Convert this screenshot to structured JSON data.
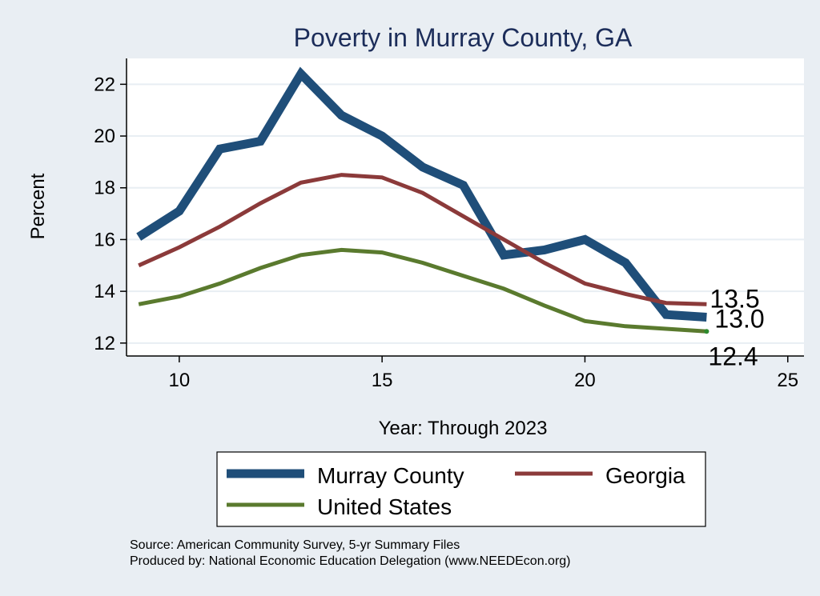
{
  "chart_data": {
    "type": "line",
    "title": "Poverty in Murray County, GA",
    "xlabel": "Year: Through 2023",
    "ylabel": "Percent",
    "xlim": [
      8.7,
      25.4
    ],
    "ylim": [
      11.5,
      23.0
    ],
    "xticks": [
      10,
      15,
      20,
      25
    ],
    "yticks": [
      12,
      14,
      16,
      18,
      20,
      22
    ],
    "grid": true,
    "legend_position": "bottom",
    "series": [
      {
        "name": "Murray County",
        "color": "#1f4e79",
        "x": [
          9,
          10,
          11,
          12,
          13,
          14,
          15,
          16,
          17,
          18,
          19,
          20,
          21,
          22,
          23
        ],
        "y": [
          16.1,
          17.1,
          19.5,
          19.8,
          22.4,
          20.8,
          20.0,
          18.8,
          18.1,
          15.4,
          15.6,
          16.0,
          15.1,
          13.1,
          13.0
        ],
        "end_label": "13.0"
      },
      {
        "name": "Georgia",
        "color": "#8b3a3a",
        "x": [
          9,
          10,
          11,
          12,
          13,
          14,
          15,
          16,
          17,
          18,
          19,
          20,
          21,
          22,
          23
        ],
        "y": [
          15.0,
          15.7,
          16.5,
          17.4,
          18.2,
          18.5,
          18.4,
          17.8,
          16.9,
          16.0,
          15.1,
          14.3,
          13.9,
          13.55,
          13.5
        ],
        "end_label": "13.5"
      },
      {
        "name": "United States",
        "color": "#5a7a2e",
        "x": [
          9,
          10,
          11,
          12,
          13,
          14,
          15,
          16,
          17,
          18,
          19,
          20,
          21,
          22,
          23
        ],
        "y": [
          13.5,
          13.8,
          14.3,
          14.9,
          15.4,
          15.6,
          15.5,
          15.1,
          14.6,
          14.1,
          13.45,
          12.85,
          12.65,
          12.55,
          12.45
        ],
        "end_label": "12.4"
      }
    ],
    "source_lines": [
      "Source: American Community Survey, 5-yr Summary Files",
      "Produced by: National Economic Education Delegation (www.NEEDEcon.org)"
    ]
  }
}
